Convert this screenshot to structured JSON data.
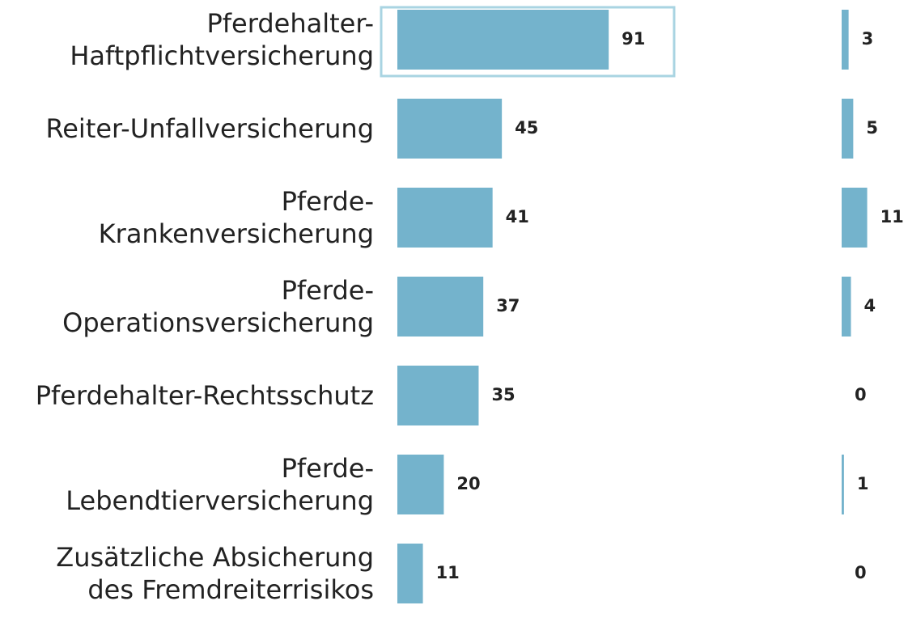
{
  "chart_data": {
    "type": "bar",
    "categories": [
      "Pferdehalter-\nHaftpflichtversicherung",
      "Reiter-Unfallversicherung",
      "Pferde-\nKrankenversicherung",
      "Pferde-\nOperationsversicherung",
      "Pferdehalter-Rechtsschutz",
      "Pferde-\nLebendtierversicherung",
      "Zusätzliche Absicherung\ndes Fremdreiterrisikos"
    ],
    "series": [
      {
        "color": "#74b3cc",
        "values": [
          91,
          45,
          41,
          37,
          35,
          20,
          11
        ]
      },
      {
        "color": "#74b3cc",
        "values": [
          3,
          5,
          11,
          4,
          0,
          1,
          0
        ]
      }
    ]
  }
}
